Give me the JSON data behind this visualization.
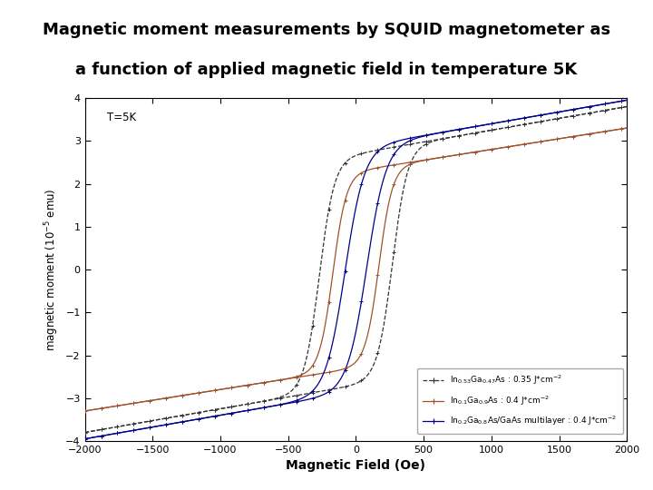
{
  "title_line1": "Magnetic moment measurements by SQUID magnetometer as",
  "title_line2": "a function of applied magnetic field in temperature 5K",
  "xlabel": "Magnetic Field (Oe)",
  "ylabel": "magnetic moment (10$^{-5}$ emu)",
  "xlim": [
    -2000,
    2000
  ],
  "ylim": [
    -4,
    4
  ],
  "xticks": [
    -2000,
    -1500,
    -1000,
    -500,
    0,
    500,
    1000,
    1500,
    2000
  ],
  "yticks": [
    -4,
    -3,
    -2,
    -1,
    0,
    1,
    2,
    3,
    4
  ],
  "annotation": "T=5K",
  "curves": [
    {
      "Hc": 270,
      "Ms": 2.7,
      "slope": 0.00055,
      "sharpness": 0.009,
      "color": "#333333",
      "marker": ".",
      "linestyle": "--",
      "label": "In$_{0.53}$Ga$_{0.47}$As : 0.35 J*cm$^{-2}$",
      "legend_ls": "--"
    },
    {
      "Hc": 170,
      "Ms": 2.3,
      "slope": 0.0005,
      "sharpness": 0.01,
      "color": "#a0522d",
      "marker": ".",
      "linestyle": "-",
      "label": "In$_{0.1}$Ga$_{0.9}$As : 0.4 J*cm$^{-2}$",
      "legend_ls": "-"
    },
    {
      "Hc": 80,
      "Ms": 2.85,
      "slope": 0.00055,
      "sharpness": 0.007,
      "color": "#00008b",
      "marker": ".",
      "linestyle": "-",
      "label": "In$_{0.2}$Ga$_{0.8}$As/GaAs multilayer : 0.4 J*cm$^{-2}$",
      "legend_ls": "-"
    }
  ],
  "background_color": "#ffffff"
}
